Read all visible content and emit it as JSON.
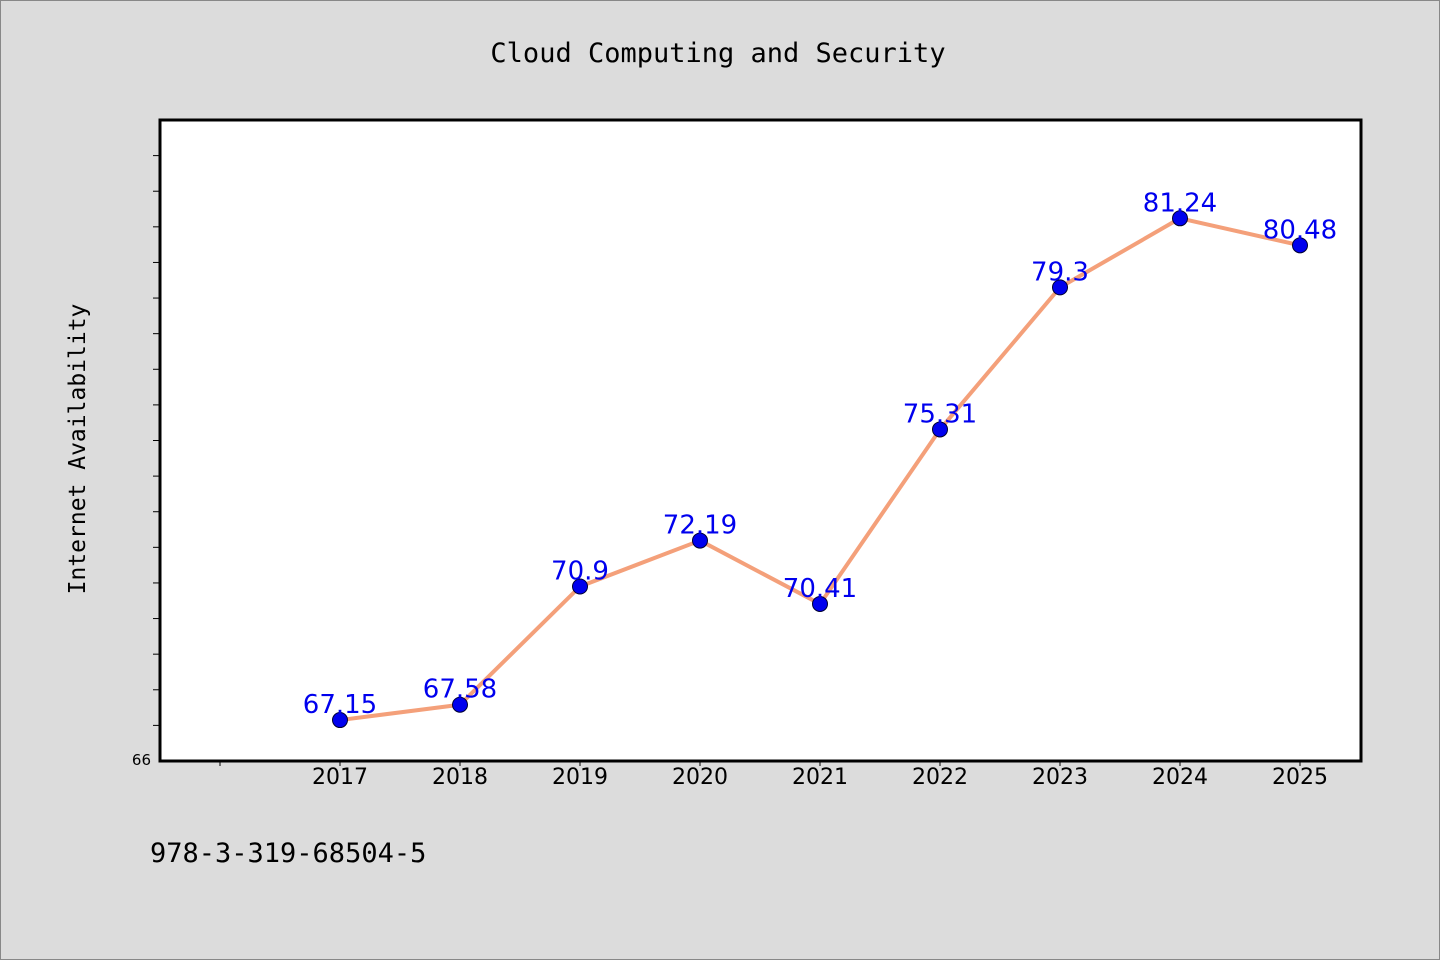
{
  "chart_data": {
    "type": "line",
    "title": "Cloud Computing and Security",
    "xlabel": "",
    "ylabel": "Internet Availability",
    "categories": [
      "2017",
      "2018",
      "2019",
      "2020",
      "2021",
      "2022",
      "2023",
      "2024",
      "2025"
    ],
    "series": [
      {
        "values": [
          67.15,
          67.58,
          70.9,
          72.19,
          70.41,
          75.31,
          79.3,
          81.24,
          80.48
        ],
        "labels": [
          "67.15",
          "67.58",
          "70.9",
          "72.19",
          "70.41",
          "75.31",
          "79.3",
          "81.24",
          "80.48"
        ],
        "line_color": "#f4a07a",
        "marker_color": "#0000ee",
        "label_color": "#0000ee"
      }
    ],
    "ylim": [
      66,
      84
    ],
    "ytick_labels": [
      "66"
    ],
    "grid": false,
    "legend": "none"
  },
  "footnote": "978-3-319-68504-5",
  "colors": {
    "background": "#dcdcdc",
    "plot_background": "#ffffff",
    "axis": "#000000"
  }
}
